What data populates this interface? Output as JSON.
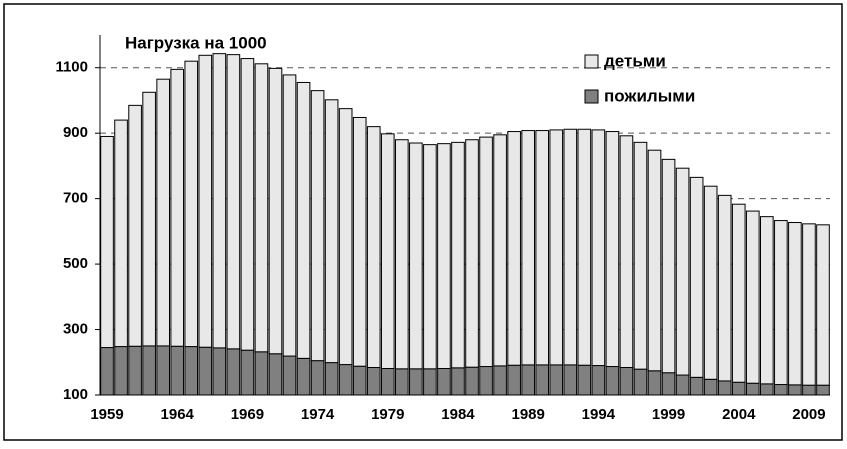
{
  "chart_data": {
    "type": "stacked_bar",
    "title": "Нагрузка на 1000",
    "categories": [
      "1959",
      null,
      null,
      null,
      null,
      "1964",
      null,
      null,
      null,
      null,
      "1969",
      null,
      null,
      null,
      null,
      "1974",
      null,
      null,
      null,
      null,
      "1979",
      null,
      null,
      null,
      null,
      "1984",
      null,
      null,
      null,
      null,
      "1989",
      null,
      null,
      null,
      null,
      "1994",
      null,
      null,
      null,
      null,
      "1999",
      null,
      null,
      null,
      null,
      "2004",
      null,
      null,
      null,
      null,
      "2009",
      null
    ],
    "series": [
      {
        "name": "детьми",
        "color": "#e8e8e8",
        "values": [
          645,
          692,
          736,
          775,
          815,
          846,
          872,
          892,
          899,
          899,
          891,
          880,
          872,
          859,
          843,
          825,
          803,
          782,
          760,
          736,
          717,
          700,
          690,
          685,
          687,
          689,
          695,
          701,
          706,
          714,
          716,
          716,
          718,
          720,
          721,
          720,
          718,
          708,
          693,
          674,
          652,
          632,
          611,
          590,
          567,
          544,
          526,
          511,
          501,
          496,
          493,
          490
        ]
      },
      {
        "name": "пожилыми",
        "color": "#808080",
        "values": [
          245,
          248,
          249,
          250,
          250,
          249,
          248,
          246,
          244,
          241,
          237,
          232,
          226,
          219,
          212,
          205,
          199,
          193,
          188,
          184,
          181,
          180,
          180,
          180,
          181,
          183,
          185,
          187,
          189,
          191,
          192,
          192,
          192,
          192,
          191,
          190,
          187,
          184,
          179,
          174,
          168,
          161,
          154,
          148,
          143,
          139,
          136,
          134,
          132,
          131,
          130,
          130
        ]
      }
    ],
    "ylim": [
      100,
      1200
    ],
    "yticks": [
      100,
      300,
      500,
      700,
      900,
      1100
    ],
    "grid": true,
    "legend": "top-right"
  }
}
